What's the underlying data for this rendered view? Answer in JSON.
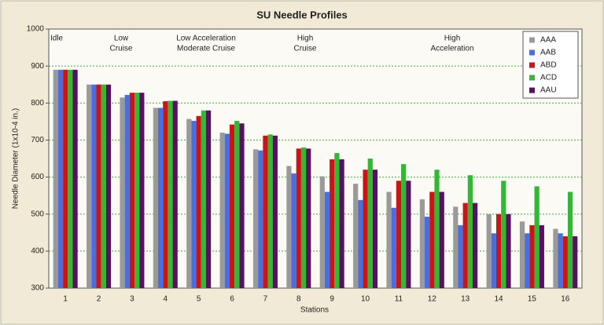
{
  "chart_data": {
    "type": "bar",
    "title": "SU Needle Profiles",
    "x_label": "Stations",
    "y_label": "Needle Diameter (1x10-4 in.)",
    "categories": [
      "1",
      "2",
      "3",
      "4",
      "5",
      "6",
      "7",
      "8",
      "9",
      "10",
      "11",
      "12",
      "13",
      "14",
      "15",
      "16"
    ],
    "series": [
      {
        "name": "AAA",
        "color": "#9a9a9a",
        "values": [
          890,
          850,
          815,
          787,
          757,
          720,
          675,
          630,
          602,
          582,
          560,
          540,
          520,
          500,
          480,
          460
        ]
      },
      {
        "name": "AAB",
        "color": "#4a6ee0",
        "values": [
          890,
          850,
          822,
          787,
          752,
          717,
          672,
          610,
          560,
          538,
          517,
          493,
          470,
          448,
          448,
          448
        ]
      },
      {
        "name": "ABD",
        "color": "#cc1414",
        "values": [
          890,
          850,
          828,
          805,
          765,
          742,
          712,
          677,
          648,
          620,
          590,
          560,
          530,
          500,
          470,
          440
        ]
      },
      {
        "name": "ACD",
        "color": "#33b833",
        "values": [
          890,
          850,
          828,
          806,
          780,
          752,
          715,
          680,
          665,
          650,
          635,
          620,
          605,
          590,
          575,
          560
        ]
      },
      {
        "name": "AAU",
        "color": "#5a1060",
        "values": [
          890,
          850,
          828,
          806,
          780,
          745,
          712,
          677,
          648,
          620,
          590,
          560,
          530,
          500,
          470,
          440
        ]
      }
    ],
    "annotations": [
      [
        "Idle"
      ],
      [
        "Low",
        "Cruise"
      ],
      [
        "Low Acceleration",
        "Moderate Cruise"
      ],
      [
        "High",
        "Cruise"
      ],
      [
        "High",
        "Acceleration"
      ]
    ],
    "ylim": [
      300,
      1000
    ],
    "yticks": [
      300,
      400,
      500,
      600,
      700,
      800,
      900,
      1000
    ],
    "grid": true,
    "legend": "top-right"
  }
}
